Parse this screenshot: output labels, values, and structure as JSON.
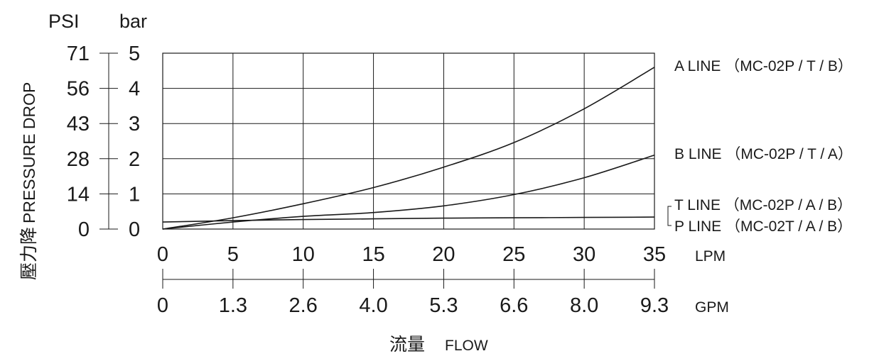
{
  "chart_data": {
    "type": "line",
    "x_primary": {
      "unit": "LPM",
      "ticks": [
        0,
        5,
        10,
        15,
        20,
        25,
        30,
        35
      ],
      "range": [
        0,
        35
      ]
    },
    "x_secondary": {
      "unit": "GPM",
      "ticks": [
        "0",
        "1.3",
        "2.6",
        "4.0",
        "5.3",
        "6.6",
        "8.0",
        "9.3"
      ]
    },
    "y_primary": {
      "unit": "bar",
      "ticks": [
        0,
        1,
        2,
        3,
        4,
        5
      ],
      "range": [
        0,
        5
      ]
    },
    "y_secondary": {
      "unit": "PSI",
      "ticks": [
        "0",
        "14",
        "28",
        "43",
        "56",
        "71"
      ]
    },
    "ylabel_cjk": "壓力降",
    "ylabel_en": "PRESSURE DROP",
    "xlabel_cjk": "流量",
    "xlabel_en": "FLOW",
    "grid": true,
    "series": [
      {
        "name": "A LINE （MC-02P / T / B）",
        "x": [
          0,
          5,
          10,
          15,
          20,
          25,
          30,
          35
        ],
        "y": [
          0,
          0.32,
          0.72,
          1.18,
          1.76,
          2.46,
          3.42,
          4.6
        ]
      },
      {
        "name": "B LINE （MC-02P / T / A）",
        "x": [
          0,
          5,
          10,
          15,
          20,
          25,
          30,
          35
        ],
        "y": [
          0,
          0.2,
          0.36,
          0.47,
          0.66,
          0.98,
          1.46,
          2.1
        ]
      },
      {
        "name": "T LINE （MC-02P / A / B）",
        "name2": "P LINE （MC-02T / A / B）",
        "x": [
          0,
          5,
          10,
          15,
          20,
          25,
          30,
          35
        ],
        "y": [
          0.2,
          0.24,
          0.27,
          0.29,
          0.31,
          0.32,
          0.33,
          0.34
        ]
      }
    ]
  }
}
